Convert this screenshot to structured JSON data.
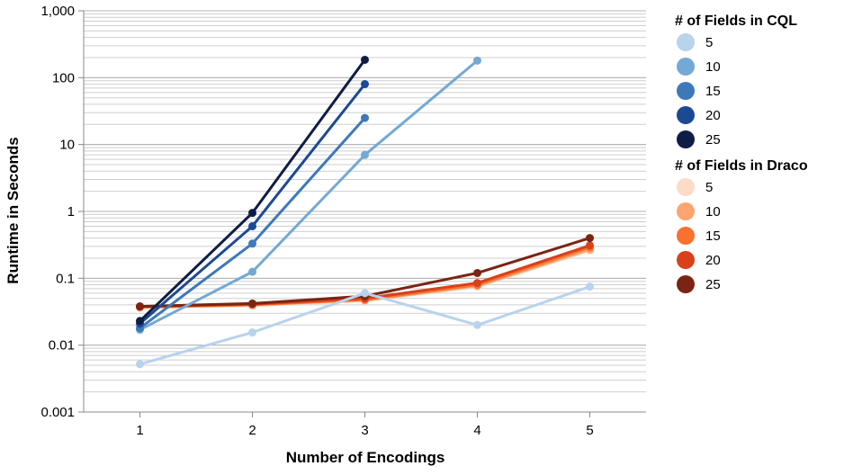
{
  "chart_data": {
    "type": "line",
    "xlabel": "Number of Encodings",
    "ylabel": "Runtime in Seconds",
    "x_ticks": [
      "1",
      "2",
      "3",
      "4",
      "5"
    ],
    "y_ticks": [
      "0.001",
      "0.01",
      "0.1",
      "1",
      "10",
      "100",
      "1,000"
    ],
    "xlim": [
      0.5,
      5.5
    ],
    "ylim": [
      0.001,
      1000
    ],
    "y_scale": "log",
    "grid": true,
    "legend_position": "right",
    "legends": [
      {
        "title": "# of Fields in CQL",
        "series": [
          {
            "name": "5",
            "color": "#b8d3ec",
            "x": [
              1,
              2,
              3,
              4,
              5
            ],
            "y": [
              0.0052,
              0.0155,
              0.06,
              0.02,
              0.075
            ]
          },
          {
            "name": "10",
            "color": "#73a9d4",
            "x": [
              1,
              2,
              3,
              4
            ],
            "y": [
              0.017,
              0.125,
              7,
              180
            ]
          },
          {
            "name": "15",
            "color": "#3d79b9",
            "x": [
              1,
              2,
              3
            ],
            "y": [
              0.018,
              0.33,
              25
            ]
          },
          {
            "name": "20",
            "color": "#1b4a94",
            "x": [
              1,
              2,
              3
            ],
            "y": [
              0.021,
              0.6,
              80
            ]
          },
          {
            "name": "25",
            "color": "#0f1d45",
            "x": [
              1,
              2,
              3
            ],
            "y": [
              0.023,
              0.95,
              185
            ]
          }
        ]
      },
      {
        "title": "# of Fields in Draco",
        "series": [
          {
            "name": "5",
            "color": "#fcdcc6",
            "x": [
              1,
              2,
              3,
              4,
              5
            ],
            "y": [
              0.036,
              0.039,
              0.046,
              0.075,
              0.26
            ]
          },
          {
            "name": "10",
            "color": "#fca56e",
            "x": [
              1,
              2,
              3,
              4,
              5
            ],
            "y": [
              0.037,
              0.04,
              0.047,
              0.077,
              0.27
            ]
          },
          {
            "name": "15",
            "color": "#f9712f",
            "x": [
              1,
              2,
              3,
              4,
              5
            ],
            "y": [
              0.037,
              0.04,
              0.048,
              0.08,
              0.29
            ]
          },
          {
            "name": "20",
            "color": "#d9401b",
            "x": [
              1,
              2,
              3,
              4,
              5
            ],
            "y": [
              0.038,
              0.041,
              0.05,
              0.085,
              0.31
            ]
          },
          {
            "name": "25",
            "color": "#7a2413",
            "x": [
              1,
              2,
              3,
              4,
              5
            ],
            "y": [
              0.038,
              0.042,
              0.054,
              0.12,
              0.4
            ]
          }
        ]
      }
    ]
  }
}
